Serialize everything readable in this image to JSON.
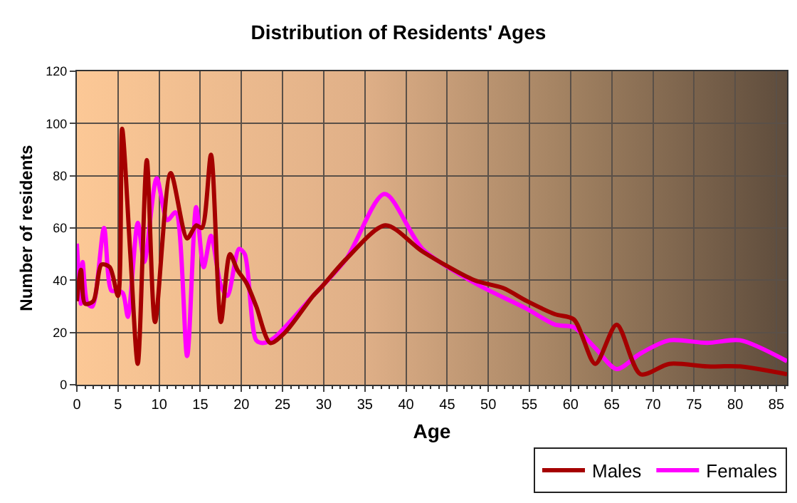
{
  "chart_data": {
    "type": "line",
    "title": "Distribution of Residents' Ages",
    "xlabel": "Age",
    "ylabel": "Number of residents",
    "xlim": [
      0,
      86.3
    ],
    "xticks": [
      0,
      5,
      10,
      15,
      20,
      25,
      30,
      35,
      40,
      45,
      50,
      55,
      60,
      65,
      70,
      75,
      80,
      85
    ],
    "ylim": [
      0,
      120
    ],
    "yticks": [
      0,
      20,
      40,
      60,
      80,
      100,
      120
    ],
    "grid": true,
    "legend": "bottom right",
    "marker": "none",
    "line_style": "solid",
    "series": [
      {
        "name": "Males",
        "color": "#a50000",
        "x": [
          0,
          0.5,
          1,
          2,
          3,
          4,
          5,
          5.5,
          6.5,
          7.4,
          8.5,
          9.5,
          11.4,
          13.4,
          14.5,
          15.2,
          16.3,
          17.5,
          18.6,
          19.5,
          20.6,
          21.8,
          23.5,
          25.3,
          28.7,
          29.9,
          32.7,
          37.5,
          42,
          48.3,
          51.8,
          54.7,
          58.1,
          60.4,
          63,
          65.6,
          68.5,
          72,
          76.6,
          80.6,
          86.3
        ],
        "values": [
          32,
          44,
          31,
          32,
          46,
          45,
          34,
          98,
          50,
          8,
          86,
          24,
          81,
          56,
          61,
          60,
          88,
          24,
          50,
          44,
          39,
          30,
          16,
          20,
          34,
          38,
          48,
          61,
          51,
          40,
          37,
          32,
          27,
          25,
          8,
          23,
          4,
          8,
          7,
          7,
          4
        ]
      },
      {
        "name": "Females",
        "color": "#ff00ff",
        "x": [
          0,
          0.5,
          0.7,
          1.3,
          1.9,
          3.3,
          4.2,
          5,
          5.6,
          6.2,
          7.4,
          8.2,
          9.7,
          11,
          12,
          13.4,
          14.5,
          15.4,
          16.3,
          17.5,
          18.3,
          19.7,
          20.4,
          21.8,
          22.7,
          24,
          28.7,
          32.7,
          37.4,
          42,
          48.3,
          54.7,
          58.1,
          60.4,
          63,
          65.6,
          68.5,
          72,
          76.6,
          80.6,
          86.3
        ],
        "values": [
          54,
          31,
          47,
          31,
          30,
          60,
          36,
          36,
          35,
          26,
          62,
          47,
          79,
          63,
          66,
          11,
          68,
          45,
          57,
          38,
          34,
          52,
          50,
          17,
          16,
          18,
          34,
          48,
          73,
          52,
          39,
          29,
          23,
          22,
          14,
          6,
          12,
          17,
          16,
          17,
          9
        ]
      }
    ]
  }
}
